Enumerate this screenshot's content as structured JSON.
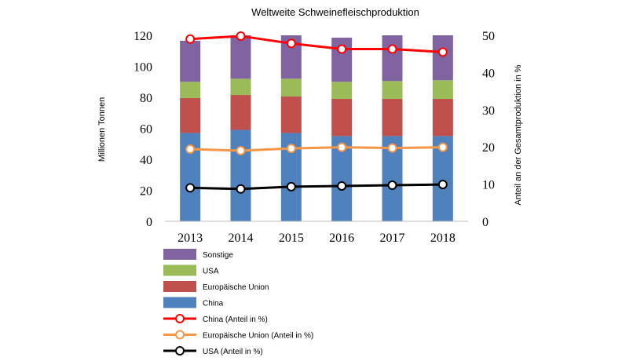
{
  "chart_data": {
    "type": "bar",
    "stacked": true,
    "title": "Weltweite Schweinefleischproduktion",
    "ylabel": "Millionen Tonnen",
    "y2label": "Anteil an der Gesamtproduktion in %",
    "ylim": [
      0,
      120
    ],
    "y2lim": [
      0,
      50
    ],
    "yticks": [
      "0",
      "20",
      "40",
      "60",
      "80",
      "100",
      "120"
    ],
    "y2ticks": [
      "0",
      "10",
      "20",
      "30",
      "40",
      "50"
    ],
    "categories": [
      "2013",
      "2014",
      "2015",
      "2016",
      "2017",
      "2018"
    ],
    "series": [
      {
        "name": "China",
        "color": "#4f81bd",
        "values": [
          57,
          59,
          57,
          55,
          55,
          55
        ]
      },
      {
        "name": "Europäische Union",
        "color": "#c0504d",
        "values": [
          22.5,
          22.5,
          23.5,
          24,
          24,
          24
        ]
      },
      {
        "name": "USA",
        "color": "#9bbb59",
        "values": [
          10.5,
          10.5,
          11.5,
          11,
          11.5,
          12
        ]
      },
      {
        "name": "Sonstige",
        "color": "#8064a2",
        "values": [
          26.5,
          28,
          28,
          28.5,
          29.5,
          29
        ]
      }
    ],
    "lines": [
      {
        "name": "China (Anteil in %)",
        "color": "#ff0000",
        "values": [
          49,
          49.8,
          47.8,
          46.3,
          46.3,
          45.5
        ]
      },
      {
        "name": "Europäische Union (Anteil in %)",
        "color": "#f79646",
        "values": [
          19.4,
          19,
          19.6,
          19.9,
          19.7,
          19.9
        ]
      },
      {
        "name": "USA (Anteil in %)",
        "color": "#000000",
        "values": [
          9,
          8.7,
          9.3,
          9.5,
          9.7,
          9.9
        ]
      }
    ],
    "legend_position": "bottom-left",
    "legend_order": [
      "Sonstige",
      "USA",
      "Europäische Union",
      "China",
      "China (Anteil in %)",
      "Europäische Union (Anteil in %)",
      "USA (Anteil in %)"
    ],
    "grid": false
  }
}
